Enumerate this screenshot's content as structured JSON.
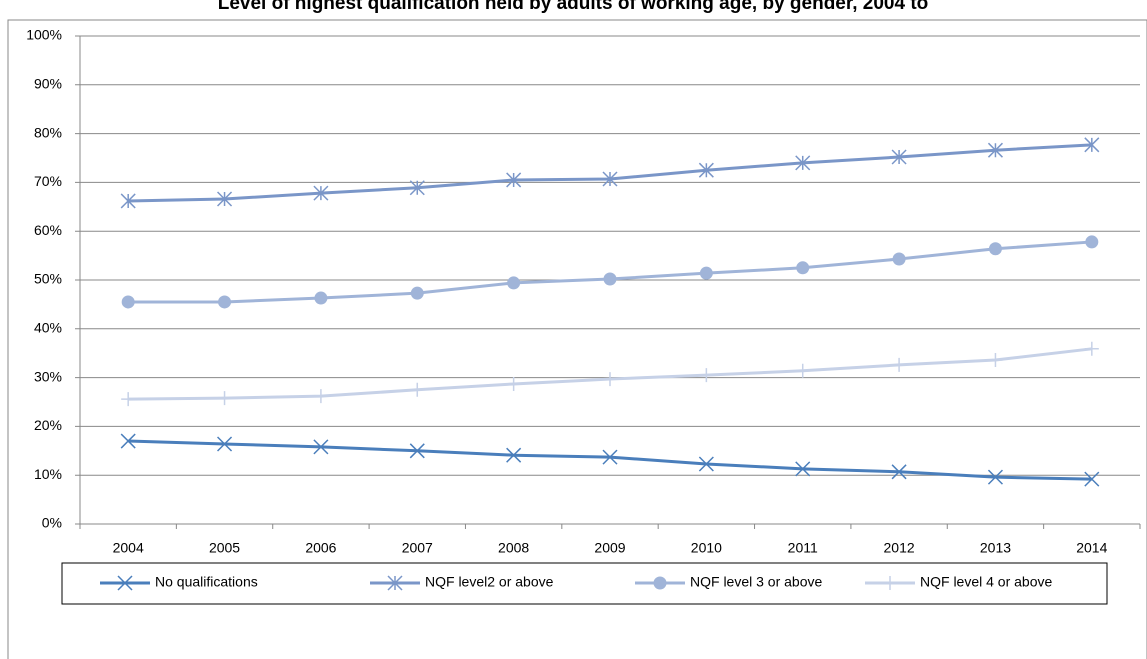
{
  "chart_data": {
    "type": "line",
    "title": "Level of highest qualification held by adults of working age, by gender, 2004 to",
    "categories": [
      "2004",
      "2005",
      "2006",
      "2007",
      "2008",
      "2009",
      "2010",
      "2011",
      "2012",
      "2013",
      "2014"
    ],
    "ylim": [
      0,
      100
    ],
    "yticks": [
      {
        "value": 0,
        "label": "0%"
      },
      {
        "value": 10,
        "label": "10%"
      },
      {
        "value": 20,
        "label": "20%"
      },
      {
        "value": 30,
        "label": "30%"
      },
      {
        "value": 40,
        "label": "40%"
      },
      {
        "value": 50,
        "label": "50%"
      },
      {
        "value": 60,
        "label": "60%"
      },
      {
        "value": 70,
        "label": "70%"
      },
      {
        "value": 80,
        "label": "80%"
      },
      {
        "value": 90,
        "label": "90%"
      },
      {
        "value": 100,
        "label": "100%"
      }
    ],
    "grid": true,
    "legend": "bottom",
    "series": [
      {
        "name": "No qualifications",
        "color": "#4a7ebb",
        "marker": "x",
        "values": [
          17.0,
          16.4,
          15.8,
          15.0,
          14.1,
          13.7,
          12.3,
          11.3,
          10.7,
          9.6,
          9.2
        ]
      },
      {
        "name": "NQF level2 or above",
        "color": "#7a96c8",
        "marker": "star",
        "values": [
          66.2,
          66.6,
          67.8,
          68.9,
          70.5,
          70.7,
          72.5,
          74.0,
          75.2,
          76.6,
          77.7
        ]
      },
      {
        "name": "NQF level 3 or above",
        "color": "#a0b4d8",
        "marker": "circle",
        "values": [
          45.5,
          45.5,
          46.3,
          47.3,
          49.4,
          50.2,
          51.4,
          52.5,
          54.3,
          56.4,
          57.8
        ]
      },
      {
        "name": "NQF level 4 or above",
        "color": "#c6d1e7",
        "marker": "plus",
        "values": [
          25.6,
          25.8,
          26.2,
          27.5,
          28.7,
          29.7,
          30.5,
          31.4,
          32.6,
          33.6,
          35.9
        ]
      }
    ]
  }
}
